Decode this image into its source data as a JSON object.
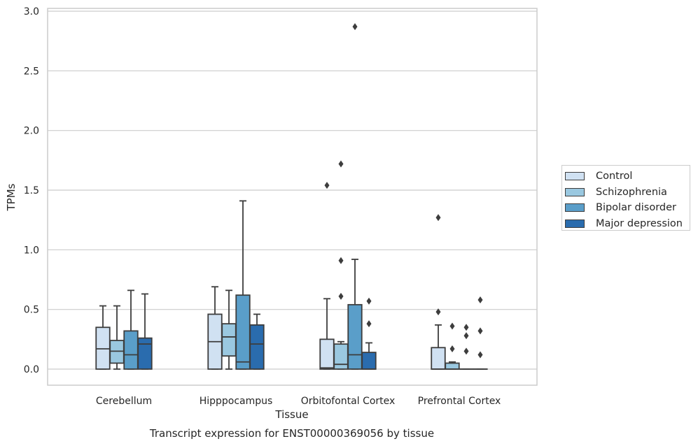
{
  "chart_data": {
    "type": "box",
    "caption": "Transcript expression for ENST00000369056 by tissue",
    "xlabel": "Tissue",
    "ylabel": "TPMs",
    "ylim": [
      -0.13,
      3.03
    ],
    "yticks": [
      "0.0",
      "0.5",
      "1.0",
      "1.5",
      "2.0",
      "2.5",
      "3.0"
    ],
    "grid": "horizontal",
    "legend_position": "right",
    "categories": [
      "Cerebellum",
      "Hipppocampus",
      "Orbitofontal Cortex",
      "Prefrontal Cortex"
    ],
    "series": [
      {
        "name": "Control",
        "color": "#d0e1f2",
        "boxes": [
          {
            "whislo": 0.0,
            "q1": 0.0,
            "med": 0.17,
            "q3": 0.35,
            "whishi": 0.53,
            "fliers": []
          },
          {
            "whislo": 0.0,
            "q1": 0.0,
            "med": 0.23,
            "q3": 0.46,
            "whishi": 0.69,
            "fliers": []
          },
          {
            "whislo": 0.0,
            "q1": 0.0,
            "med": 0.01,
            "q3": 0.25,
            "whishi": 0.59,
            "fliers": [
              1.54
            ]
          },
          {
            "whislo": 0.0,
            "q1": 0.0,
            "med": 0.0,
            "q3": 0.18,
            "whishi": 0.37,
            "fliers": [
              0.48,
              1.27
            ]
          }
        ]
      },
      {
        "name": "Schizophrenia",
        "color": "#9ac8e0",
        "boxes": [
          {
            "whislo": 0.0,
            "q1": 0.05,
            "med": 0.15,
            "q3": 0.24,
            "whishi": 0.53,
            "fliers": []
          },
          {
            "whislo": 0.0,
            "q1": 0.11,
            "med": 0.27,
            "q3": 0.38,
            "whishi": 0.66,
            "fliers": []
          },
          {
            "whislo": 0.0,
            "q1": 0.0,
            "med": 0.04,
            "q3": 0.21,
            "whishi": 0.23,
            "fliers": [
              0.61,
              0.91,
              1.72
            ]
          },
          {
            "whislo": 0.0,
            "q1": 0.0,
            "med": 0.0,
            "q3": 0.05,
            "whishi": 0.06,
            "fliers": [
              0.17,
              0.36
            ]
          }
        ]
      },
      {
        "name": "Bipolar disorder",
        "color": "#5a9ec9",
        "boxes": [
          {
            "whislo": 0.0,
            "q1": 0.0,
            "med": 0.12,
            "q3": 0.32,
            "whishi": 0.66,
            "fliers": []
          },
          {
            "whislo": 0.0,
            "q1": 0.0,
            "med": 0.06,
            "q3": 0.62,
            "whishi": 1.41,
            "fliers": []
          },
          {
            "whislo": 0.0,
            "q1": 0.0,
            "med": 0.12,
            "q3": 0.54,
            "whishi": 0.92,
            "fliers": [
              2.87
            ]
          },
          {
            "whislo": 0.0,
            "q1": 0.0,
            "med": 0.0,
            "q3": 0.0,
            "whishi": 0.0,
            "fliers": [
              0.15,
              0.28,
              0.35
            ]
          }
        ]
      },
      {
        "name": "Major depression",
        "color": "#2a6cae",
        "boxes": [
          {
            "whislo": 0.0,
            "q1": 0.0,
            "med": 0.21,
            "q3": 0.26,
            "whishi": 0.63,
            "fliers": []
          },
          {
            "whislo": 0.0,
            "q1": 0.0,
            "med": 0.21,
            "q3": 0.37,
            "whishi": 0.46,
            "fliers": []
          },
          {
            "whislo": 0.0,
            "q1": 0.0,
            "med": 0.0,
            "q3": 0.14,
            "whishi": 0.22,
            "fliers": [
              0.38,
              0.57
            ]
          },
          {
            "whislo": 0.0,
            "q1": 0.0,
            "med": 0.0,
            "q3": 0.0,
            "whishi": 0.0,
            "fliers": [
              0.12,
              0.32,
              0.58
            ]
          }
        ]
      }
    ]
  }
}
